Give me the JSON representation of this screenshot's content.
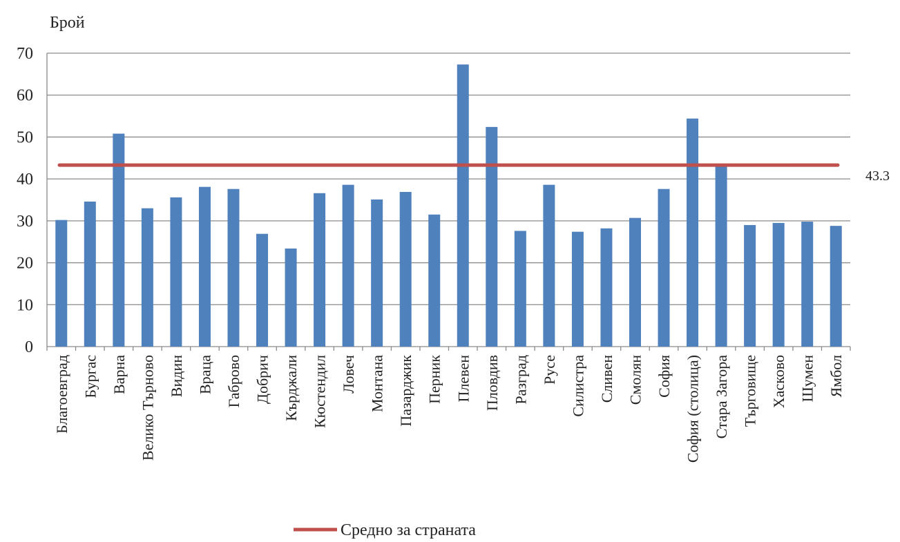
{
  "chart_data": {
    "type": "bar",
    "ylabel": "Брой",
    "xlabel": "",
    "ylim": [
      0,
      70
    ],
    "yticks": [
      0,
      10,
      20,
      30,
      40,
      50,
      60,
      70
    ],
    "grid": true,
    "legend_position": "bottom-center",
    "categories": [
      "Благоевград",
      "Бургас",
      "Варна",
      "Велико Търново",
      "Видин",
      "Враца",
      "Габрово",
      "Добрич",
      "Кърджали",
      "Кюстендил",
      "Ловеч",
      "Монтана",
      "Пазарджик",
      "Перник",
      "Плевен",
      "Пловдив",
      "Разград",
      "Русе",
      "Силистра",
      "Сливен",
      "Смолян",
      "София",
      "София (столица)",
      "Стара Загора",
      "Търговище",
      "Хасково",
      "Шумен",
      "Ямбол"
    ],
    "values": [
      30.2,
      34.6,
      50.8,
      33.0,
      35.6,
      38.1,
      37.6,
      26.9,
      23.4,
      36.6,
      38.6,
      35.1,
      36.9,
      31.5,
      67.3,
      52.4,
      27.6,
      38.6,
      27.4,
      28.2,
      30.7,
      37.6,
      54.4,
      43.3,
      29.0,
      29.5,
      29.8,
      28.8
    ],
    "bar_color": "#4f81bd",
    "average": {
      "name": "Средно за страната",
      "value": 43.3,
      "label": "43.3",
      "color": "#c0504d"
    }
  }
}
